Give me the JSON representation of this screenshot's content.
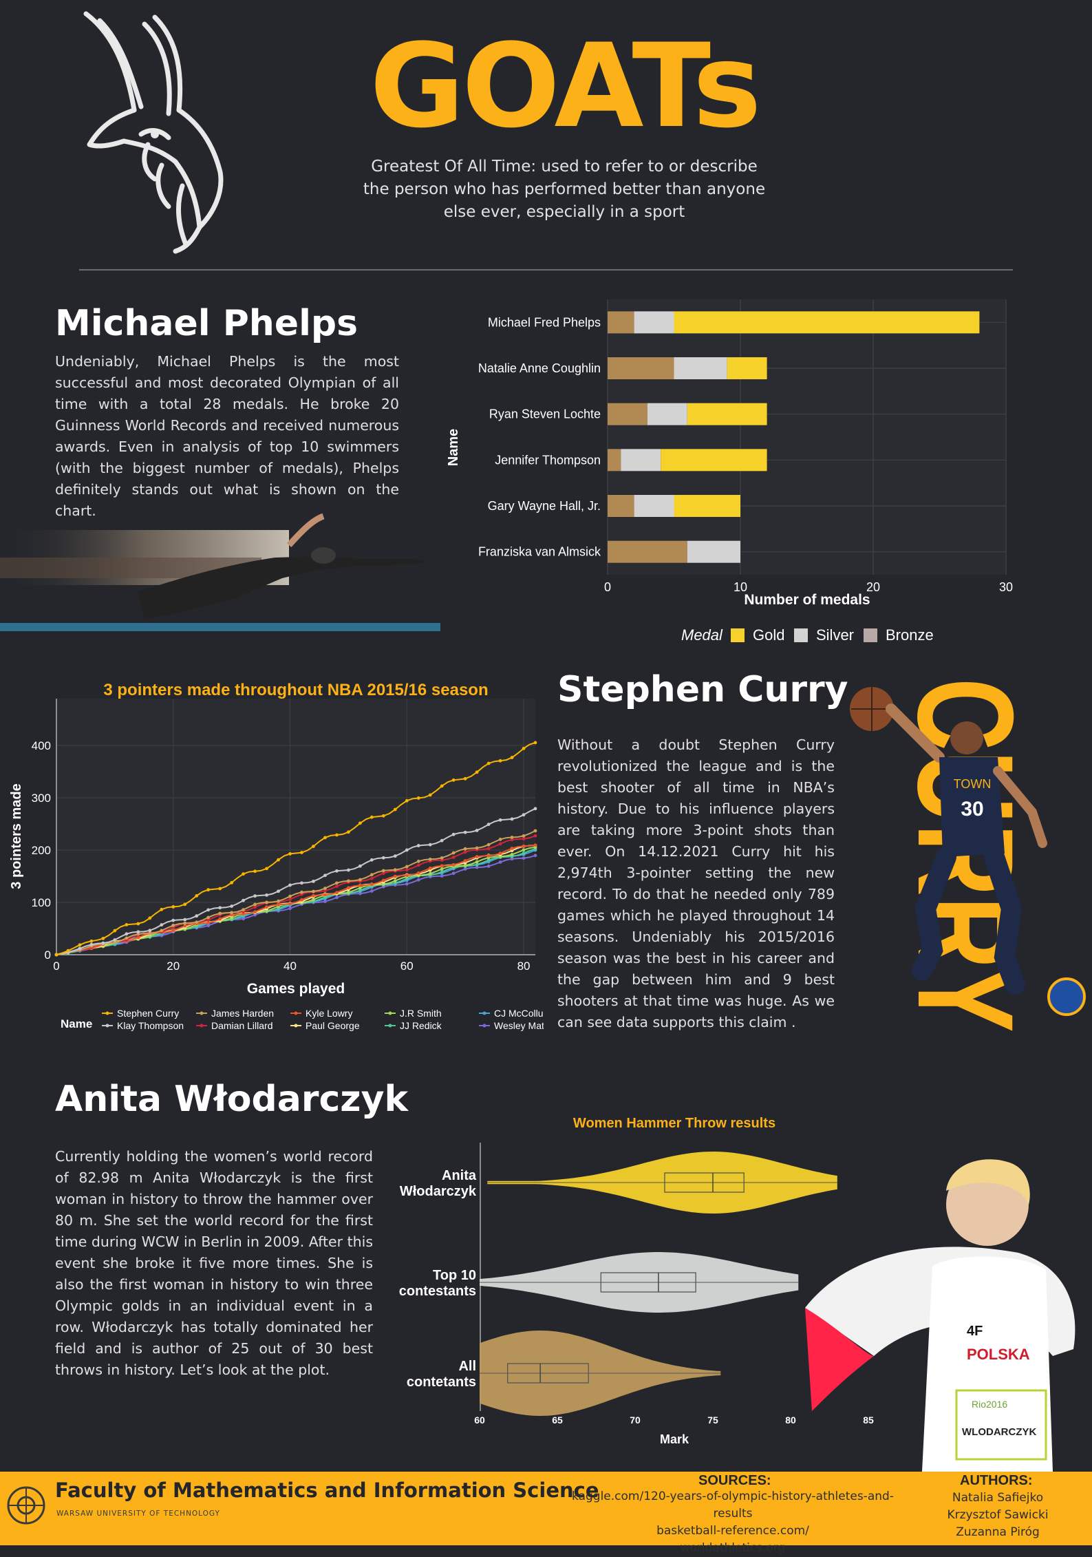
{
  "header": {
    "title": "GOATs",
    "subtitle_lines": [
      "Greatest Of All Time: used to refer to or describe",
      "the person who has performed better than anyone",
      "else ever, especially in a sport"
    ]
  },
  "phelps": {
    "heading": "Michael Phelps",
    "text": "Undeniably, Michael Phelps is the most successful and most decorated Olympian of all time with a total 28 medals. He broke 20 Guinness World Records and received numerous awards. Even in analysis of top 10 swimmers (with the biggest number of medals), Phelps definitely stands out what is shown on the chart."
  },
  "curry": {
    "heading": "Stephen Curry",
    "text": "Without a doubt Stephen Curry revolutionized the league and is the best shooter of all time in NBA’s history. Due to his influence players are taking more 3-point shots than ever. On 14.12.2021 Curry hit his 2,974th 3-pointer setting the new record. To do that he needed only 789 games which he played throughout 14 seasons. Undeniably his 2015/2016 season was the best in his career and the gap between him and 9 best shooters at that time was huge. As we can see data supports this claim .",
    "vertical_word": "CURRY",
    "jersey_word": "TOWN",
    "jersey_number": "30"
  },
  "anita": {
    "heading": "Anita Włodarczyk",
    "text": "Currently holding the women’s world record of 82.98 m Anita Włodarczyk is the first woman in history to throw the hammer over 80 m. She set the world  record for the first time during WCW in Berlin in 2009. After this event she broke it five more times. She is also the first woman in history to win three Olympic golds in an individual event in a row. Włodarczyk has totally dominated her field and is author of 25 out of 30 best throws in history. Let’s look at the plot.",
    "shirt_brand": "4F",
    "shirt_text": "POLSKA",
    "bib_event": "Rio2016",
    "bib_name": "WLODARCZYK"
  },
  "footer": {
    "faculty": "Faculty of Mathematics and Information Science",
    "university": "WARSAW UNIVERSITY OF TECHNOLOGY",
    "sources_heading": "SOURCES:",
    "sources": [
      "kaggle.com/120-years-of-olympic-history-athletes-and-results",
      "basketball-reference.com/",
      "worldathletics.org"
    ],
    "authors_heading": "AUTHORS:",
    "authors": [
      "Natalia Safiejko",
      "Krzysztof Sawicki",
      "Zuzanna Piróg"
    ]
  },
  "colors": {
    "accent": "#fbb117",
    "background": "#24262b",
    "gold": "#f5d12a",
    "silver": "#d3d3d3",
    "bronze": "#b08a52"
  },
  "chart_data": [
    {
      "type": "bar",
      "orientation": "horizontal",
      "stacked": true,
      "categories": [
        "Michael Fred Phelps",
        "Natalie Anne Coughlin",
        "Ryan Steven Lochte",
        "Jennifer Thompson",
        "Gary Wayne Hall, Jr.",
        "Franziska van Almsick"
      ],
      "series": [
        {
          "name": "Bronze",
          "values": [
            2,
            5,
            3,
            1,
            2,
            6
          ]
        },
        {
          "name": "Silver",
          "values": [
            3,
            4,
            3,
            3,
            3,
            4
          ]
        },
        {
          "name": "Gold",
          "values": [
            23,
            3,
            6,
            8,
            5,
            0
          ]
        }
      ],
      "xlabel": "Number of medals",
      "ylabel": "Name",
      "xlim": [
        0,
        30
      ],
      "xticks": [
        0,
        10,
        20,
        30
      ],
      "legend_title": "Medal",
      "legend_items": [
        "Gold",
        "Silver",
        "Bronze"
      ],
      "legend_position": "bottom",
      "grid": true
    },
    {
      "type": "line",
      "title": "3 pointers made throughout NBA 2015/16 season",
      "xlabel": "Games played",
      "ylabel": "3 pointers made",
      "xlim": [
        0,
        82
      ],
      "ylim": [
        0,
        450
      ],
      "xticks": [
        0,
        20,
        40,
        60,
        80
      ],
      "yticks": [
        0,
        100,
        200,
        300,
        400
      ],
      "legend_title": "Name",
      "legend_position": "bottom",
      "grid": true,
      "series": [
        {
          "name": "Stephen Curry",
          "color": "#f7b500",
          "final": 402
        },
        {
          "name": "Klay Thompson",
          "color": "#c8c8cc",
          "final": 276
        },
        {
          "name": "James Harden",
          "color": "#c9a25a",
          "final": 236
        },
        {
          "name": "Damian Lillard",
          "color": "#d2243a",
          "final": 229
        },
        {
          "name": "Kyle Lowry",
          "color": "#e8552a",
          "final": 212
        },
        {
          "name": "Paul George",
          "color": "#ffe38a",
          "final": 210
        },
        {
          "name": "J.R Smith",
          "color": "#a5d65a",
          "final": 204
        },
        {
          "name": "JJ Redick",
          "color": "#4ec79b",
          "final": 200
        },
        {
          "name": "CJ McCollum",
          "color": "#4aa3df",
          "final": 199
        },
        {
          "name": "Wesley Matthews",
          "color": "#7b6bd6",
          "final": 191
        }
      ]
    },
    {
      "type": "violin",
      "title": "Women Hammer Throw results",
      "xlabel": "Mark",
      "xlim": [
        60,
        85
      ],
      "xticks": [
        60,
        65,
        70,
        75,
        80,
        85
      ],
      "groups": [
        {
          "name": "Anita Włodarczyk",
          "min": 60.5,
          "q1": 71.9,
          "median": 75.0,
          "q3": 77.0,
          "max": 83.0,
          "color": "#f6d12c"
        },
        {
          "name": "Top 10 contestants",
          "min": 60.0,
          "q1": 67.8,
          "median": 71.5,
          "q3": 73.9,
          "max": 80.5,
          "color": "#d9d9d9"
        },
        {
          "name": "All contetants",
          "min": 60.0,
          "q1": 61.8,
          "median": 63.9,
          "q3": 67.0,
          "max": 75.5,
          "color": "#bf9a5c"
        }
      ]
    }
  ]
}
